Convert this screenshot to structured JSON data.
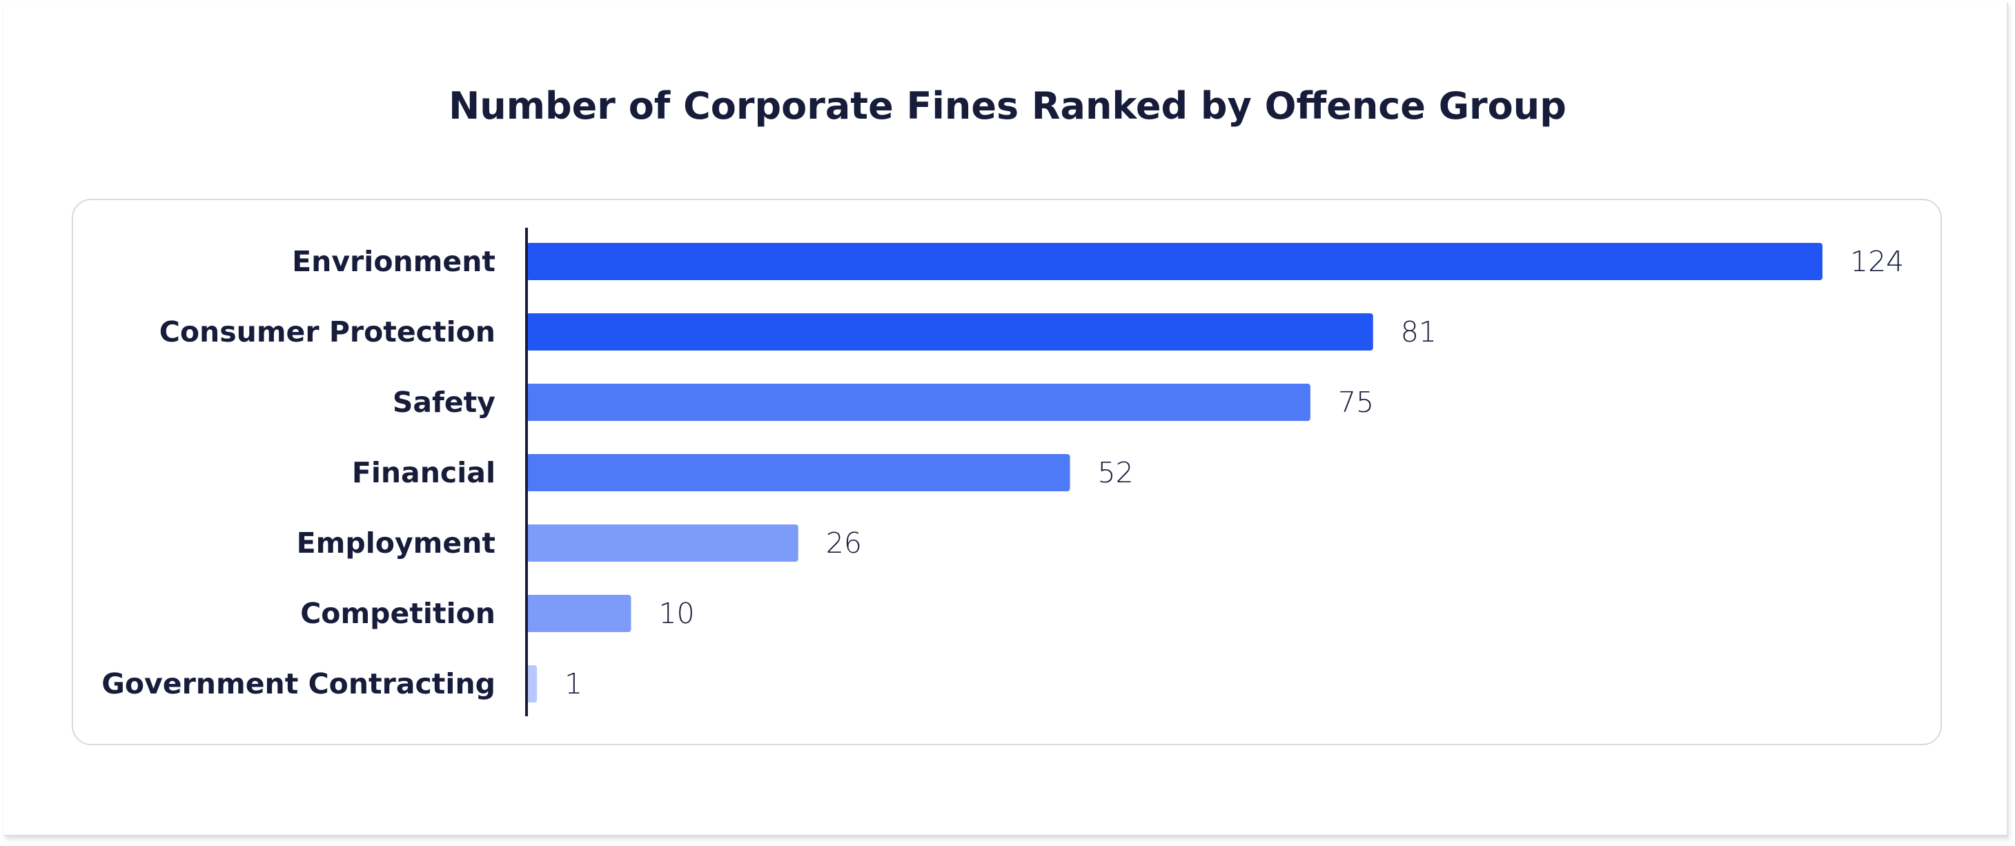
{
  "chart_data": {
    "type": "bar",
    "orientation": "horizontal",
    "title": "Number of Corporate Fines Ranked by Offence Group",
    "xlabel": "",
    "ylabel": "",
    "categories": [
      "Envrionment",
      "Consumer Protection",
      "Safety",
      "Financial",
      "Employment",
      "Competition",
      "Government Contracting"
    ],
    "values": [
      124,
      81,
      75,
      52,
      26,
      10,
      1
    ],
    "xlim": [
      0,
      124
    ],
    "grid": false,
    "legend": "none",
    "colors": [
      "#2156f5",
      "#2156f5",
      "#4f7af7",
      "#4f7af7",
      "#7d9cf9",
      "#7d9cf9",
      "#b8c8fc"
    ]
  }
}
